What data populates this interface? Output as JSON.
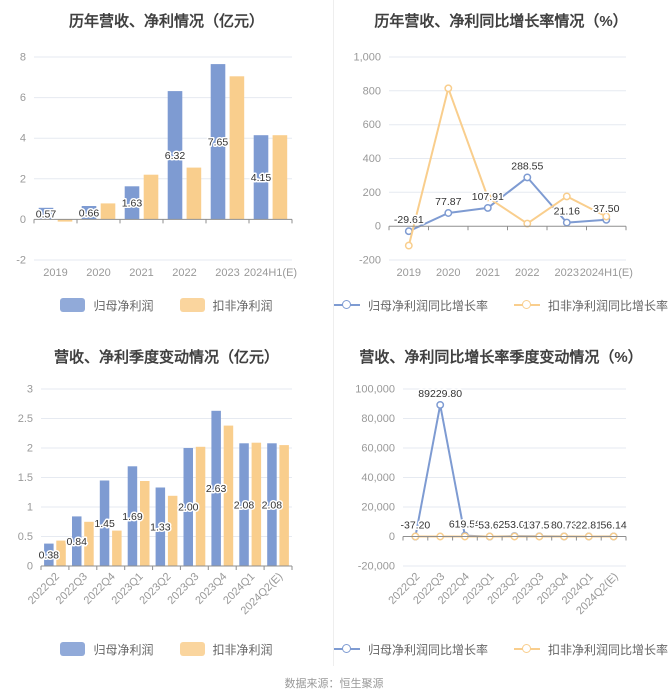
{
  "footer": {
    "source": "数据来源：恒生聚源"
  },
  "colors": {
    "primary_series": "#7E9BD2",
    "secondary_series": "#F9CE8D",
    "title_text": "#404040",
    "axis_label": "#999999",
    "grid_line": "#E6EAF1",
    "axis_line": "#8F8F8F",
    "value_label": "#333333",
    "legend_text": "#666666",
    "source_text": "#999999",
    "divider": "#EEEEEE"
  },
  "chart_data": [
    {
      "id": "annual-profit",
      "type": "bar",
      "title": "历年营收、净利情况（亿元）",
      "categories": [
        "2019",
        "2020",
        "2021",
        "2022",
        "2023",
        "2024H1(E)"
      ],
      "series": [
        {
          "name": "归母净利润",
          "color": "#7E9BD2",
          "values": [
            0.57,
            0.66,
            1.63,
            6.32,
            7.65,
            4.15
          ],
          "labels": [
            "0.57",
            "0.66",
            "1.63",
            "6.32",
            "7.65",
            "4.15"
          ]
        },
        {
          "name": "扣非净利润",
          "color": "#F9CE8D",
          "values": [
            -0.11,
            0.79,
            2.2,
            2.55,
            7.05,
            4.15
          ],
          "labels": []
        }
      ],
      "ylim": [
        -2,
        8
      ],
      "yticks": {
        "values": [
          -2,
          0,
          2,
          4,
          6,
          8
        ],
        "labels": [
          "-2",
          "0",
          "2",
          "4",
          "6",
          "8"
        ]
      },
      "rotate_x_labels": false,
      "legend_type": "rect",
      "grid_on": true,
      "legend_position": "bottom"
    },
    {
      "id": "annual-growth",
      "type": "line",
      "title": "历年营收、净利同比增长率情况（%）",
      "categories": [
        "2019",
        "2020",
        "2021",
        "2022",
        "2023",
        "2024H1(E)"
      ],
      "series": [
        {
          "name": "归母净利润同比增长率",
          "color": "#7E9BD2",
          "values": [
            -29.61,
            77.87,
            107.91,
            288.55,
            21.16,
            37.5
          ],
          "labels": [
            "-29.61",
            "77.87",
            "107.91",
            "288.55",
            "21.16",
            "37.50"
          ]
        },
        {
          "name": "扣非净利润同比增长率",
          "color": "#F9CE8D",
          "values": [
            -115,
            815,
            170,
            15,
            176,
            57
          ],
          "labels": []
        }
      ],
      "ylim": [
        -200,
        1000
      ],
      "yticks": {
        "values": [
          -200,
          0,
          200,
          400,
          600,
          800,
          1000
        ],
        "labels": [
          "-200",
          "0",
          "200",
          "400",
          "600",
          "800",
          "1,000"
        ]
      },
      "rotate_x_labels": false,
      "legend_type": "line",
      "grid_on": true,
      "legend_position": "bottom"
    },
    {
      "id": "quarterly-profit",
      "type": "bar",
      "title": "营收、净利季度变动情况（亿元）",
      "categories": [
        "2022Q2",
        "2022Q3",
        "2022Q4",
        "2023Q1",
        "2023Q2",
        "2023Q3",
        "2023Q4",
        "2024Q1",
        "2024Q2(E)"
      ],
      "series": [
        {
          "name": "归母净利润",
          "color": "#7E9BD2",
          "values": [
            0.38,
            0.84,
            1.45,
            1.69,
            1.33,
            2.0,
            2.63,
            2.08,
            2.08
          ],
          "labels": [
            "0.38",
            "0.84",
            "1.45",
            "1.69",
            "1.33",
            "2.00",
            "2.63",
            "2.08",
            "2.08"
          ]
        },
        {
          "name": "扣非净利润",
          "color": "#F9CE8D",
          "values": [
            0.43,
            0.75,
            0.6,
            1.44,
            1.19,
            2.02,
            2.38,
            2.09,
            2.05
          ],
          "labels": []
        }
      ],
      "ylim": [
        0,
        3
      ],
      "yticks": {
        "values": [
          0,
          0.5,
          1,
          1.5,
          2,
          2.5,
          3
        ],
        "labels": [
          "0",
          "0.5",
          "1",
          "1.5",
          "2",
          "2.5",
          "3"
        ]
      },
      "rotate_x_labels": true,
      "legend_type": "rect",
      "grid_on": true,
      "legend_position": "bottom"
    },
    {
      "id": "quarterly-growth",
      "type": "line",
      "title": "营收、净利同比增长率季度变动情况（%）",
      "categories": [
        "2022Q2",
        "2022Q3",
        "2022Q4",
        "2023Q1",
        "2023Q2",
        "2023Q3",
        "2023Q4",
        "2024Q1",
        "2024Q2(E)"
      ],
      "series": [
        {
          "name": "归母净利润同比增长率",
          "color": "#7E9BD2",
          "values": [
            -37.2,
            89229.8,
            619.56,
            -53.62,
            253.06,
            137.58,
            80.73,
            22.81,
            56.14
          ],
          "labels": [
            "-37.20",
            "89229.80",
            "619.56",
            "-53.62",
            "253.06",
            "137.58",
            "80.73",
            "22.81",
            "56.14"
          ]
        },
        {
          "name": "扣非净利润同比增长率",
          "color": "#F9CE8D",
          "values": [
            0,
            0,
            0,
            0,
            0,
            0,
            0,
            0,
            0
          ],
          "labels": []
        }
      ],
      "ylim": [
        -20000,
        100000
      ],
      "yticks": {
        "values": [
          -20000,
          0,
          20000,
          40000,
          60000,
          80000,
          100000
        ],
        "labels": [
          "-20,000",
          "0",
          "20,000",
          "40,000",
          "60,000",
          "80,000",
          "100,000"
        ]
      },
      "rotate_x_labels": true,
      "legend_type": "line",
      "grid_on": true,
      "legend_position": "bottom"
    }
  ]
}
